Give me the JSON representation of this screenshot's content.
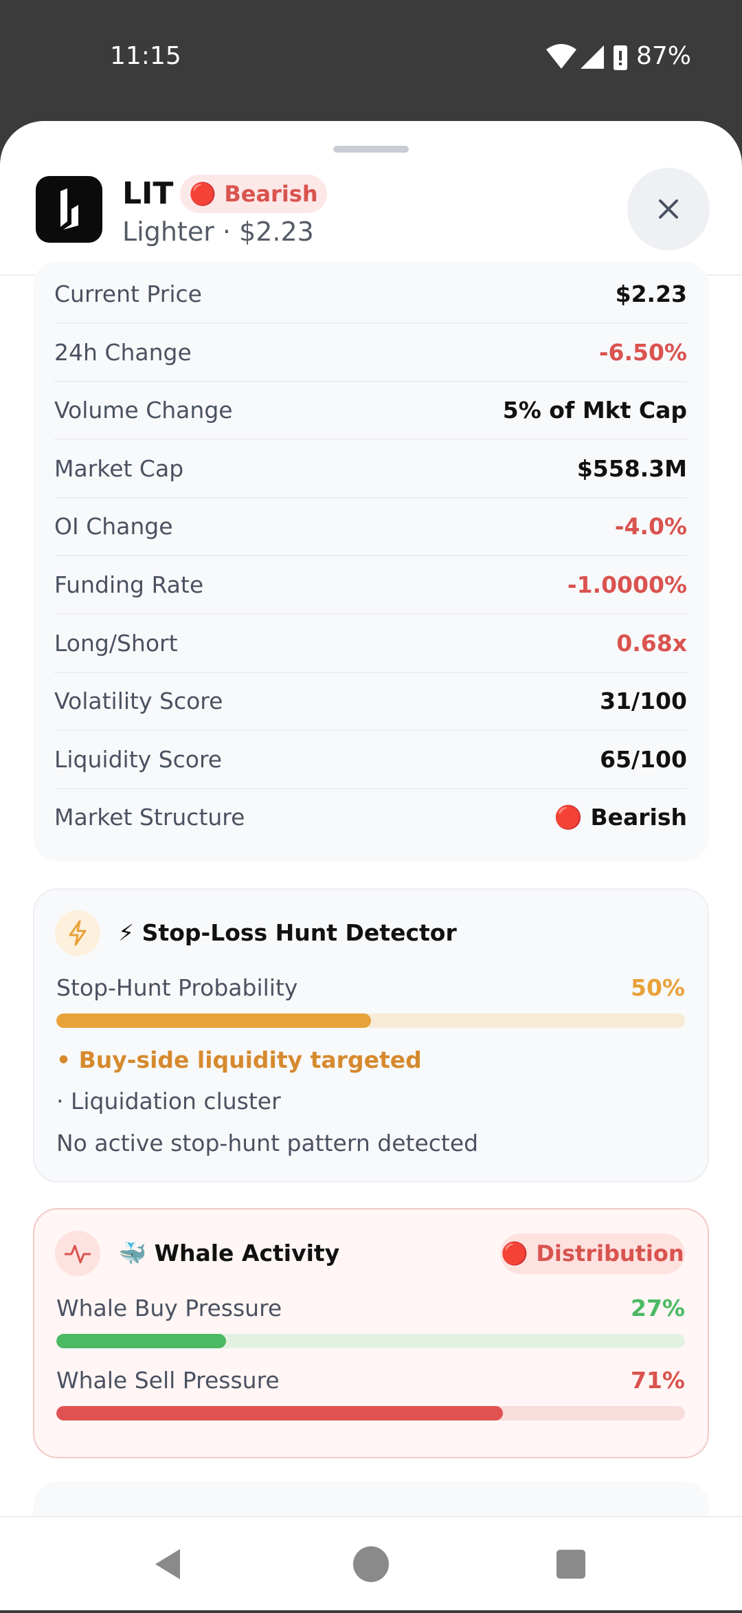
{
  "status_bar": {
    "time": "11:15",
    "battery": "87%"
  },
  "header": {
    "symbol": "LIT",
    "badge": "🔴 Bearish",
    "subtitle": "Lighter · $2.23"
  },
  "metrics": {
    "rows": [
      [
        "Current Price",
        "$2.23"
      ],
      [
        "24h Change",
        "-6.50%"
      ],
      [
        "Volume Change",
        "5% of Mkt Cap"
      ],
      [
        "Market Cap",
        "$558.3M"
      ],
      [
        "OI Change",
        "-4.0%"
      ],
      [
        "Funding Rate",
        "-1.0000%"
      ],
      [
        "Long/Short",
        "0.68x"
      ],
      [
        "Volatility Score",
        "31/100"
      ],
      [
        "Liquidity Score",
        "65/100"
      ],
      [
        "Market Structure",
        "🔴 Bearish"
      ]
    ]
  },
  "stop_hunt": {
    "title": "⚡ Stop-Loss Hunt Detector",
    "probability_label": "Stop-Hunt Probability",
    "probability": {
      "value": 50,
      "label": "50%"
    },
    "signals": [
      "• Buy-side liquidity targeted",
      "· Liquidation cluster",
      "No active stop-hunt pattern detected"
    ]
  },
  "whale": {
    "title": "🐳 Whale Activity",
    "badge": "🔴 Distribution",
    "buy_label": "Whale Buy Pressure",
    "buy": {
      "value": 27,
      "label": "27%"
    },
    "sell_label": "Whale Sell Pressure",
    "sell": {
      "value": 71,
      "label": "71%"
    }
  }
}
